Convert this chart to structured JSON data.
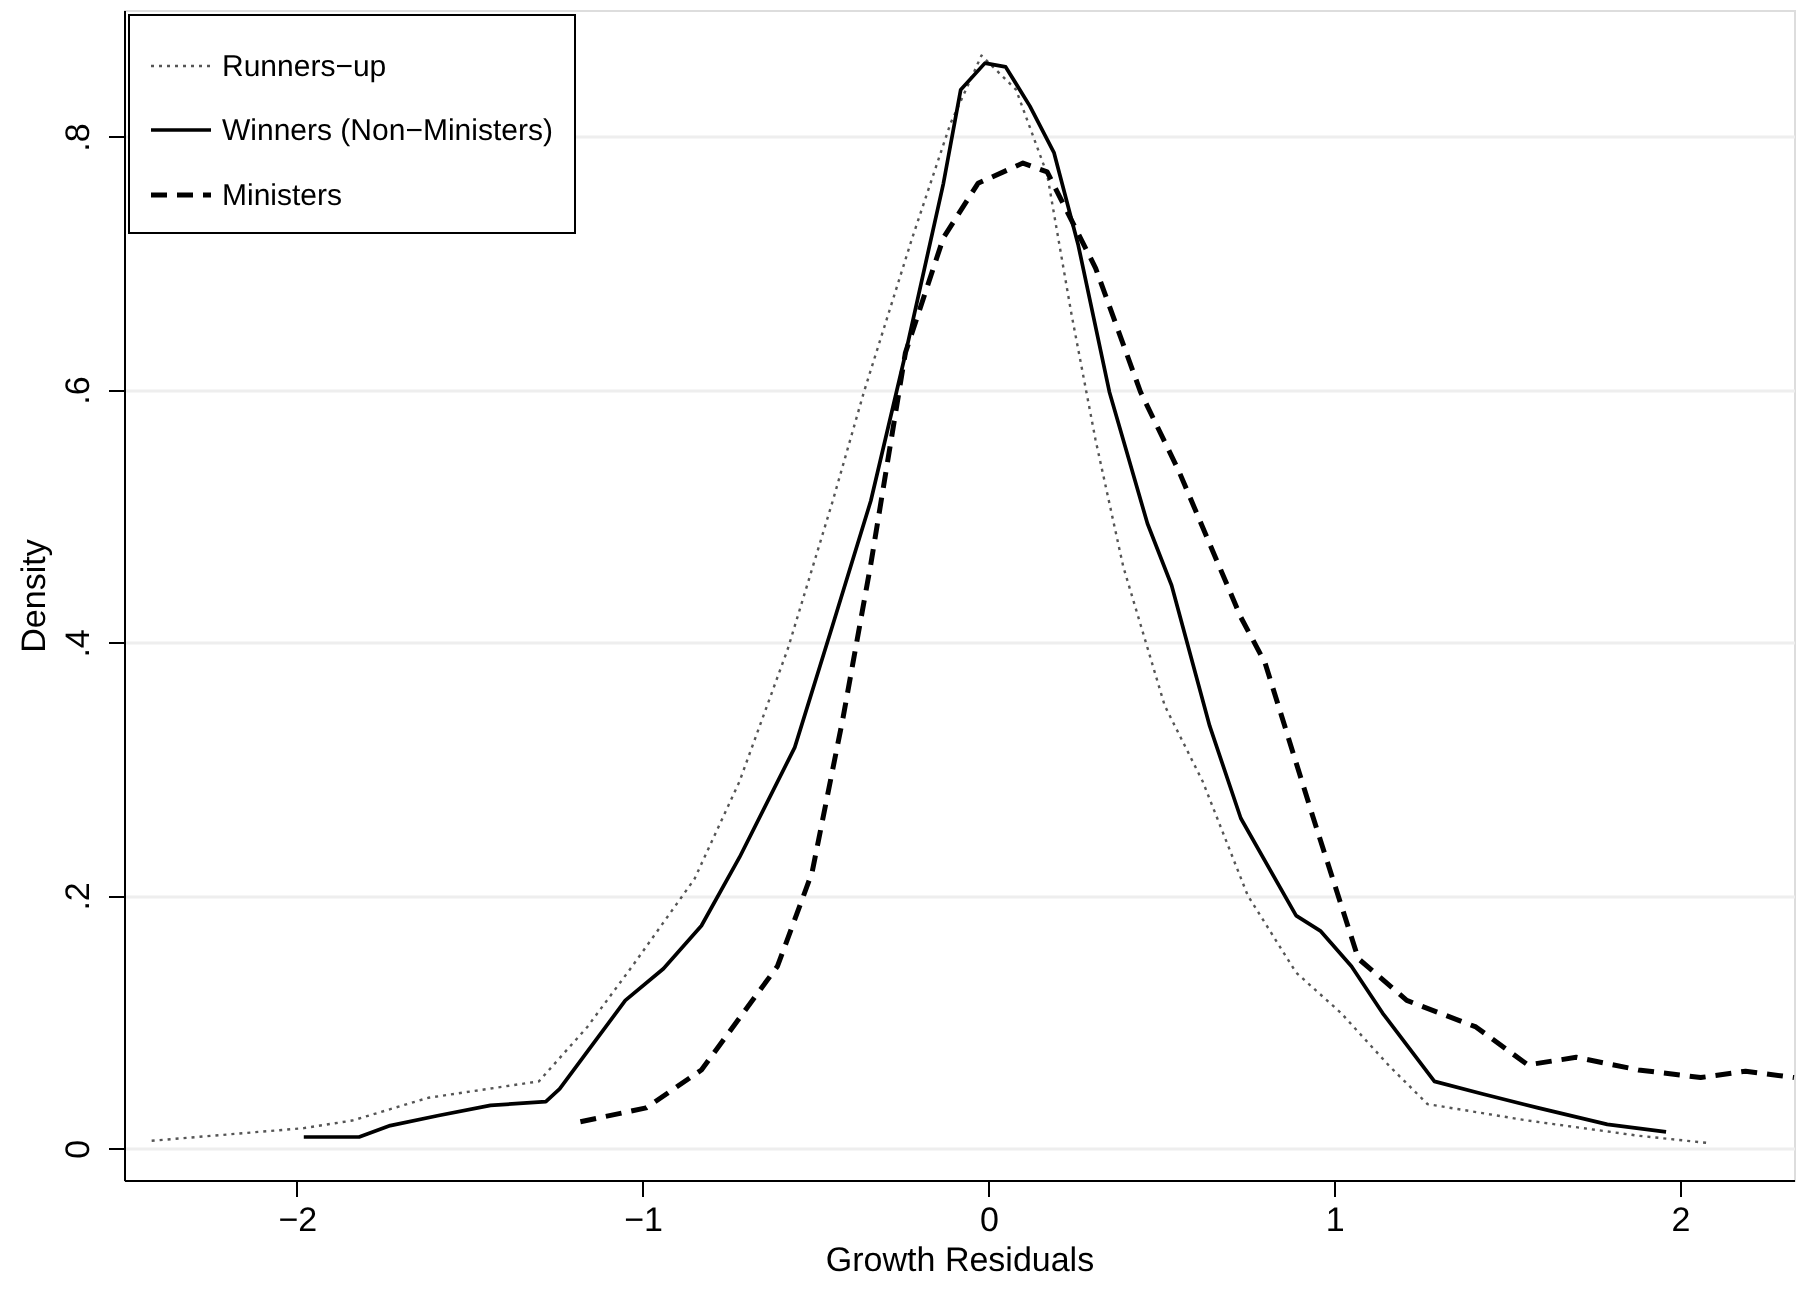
{
  "chart_data": {
    "type": "line",
    "xlabel": "Growth Residuals",
    "ylabel": "Density",
    "xlim": [
      -2.5,
      2.33
    ],
    "ylim": [
      -0.025,
      0.9
    ],
    "xticks": [
      {
        "value": -2,
        "label": "−2"
      },
      {
        "value": -1,
        "label": "−1"
      },
      0,
      1,
      2
    ],
    "yticks": [
      0,
      {
        "value": 0.2,
        "label": ".2"
      },
      {
        "value": 0.4,
        "label": ".4"
      },
      {
        "value": 0.6,
        "label": ".6"
      },
      {
        "value": 0.8,
        "label": ".8"
      }
    ],
    "grid": "y",
    "legend": "top left",
    "series": [
      {
        "name": "Runners−up",
        "color": "#555555",
        "line_style": "dotted",
        "x": [
          -2.42,
          -1.98,
          -1.84,
          -1.62,
          -1.3,
          -1.16,
          -1.03,
          -0.85,
          -0.72,
          -0.58,
          -0.45,
          -0.36,
          -0.22,
          -0.11,
          -0.02,
          0.08,
          0.17,
          0.24,
          0.31,
          0.39,
          0.51,
          0.62,
          0.75,
          0.89,
          1.02,
          1.16,
          1.27,
          1.56,
          1.88,
          2.09
        ],
        "values": [
          0.006,
          0.016,
          0.022,
          0.04,
          0.053,
          0.096,
          0.144,
          0.213,
          0.29,
          0.395,
          0.512,
          0.598,
          0.72,
          0.81,
          0.864,
          0.837,
          0.77,
          0.66,
          0.56,
          0.46,
          0.35,
          0.29,
          0.2,
          0.139,
          0.107,
          0.065,
          0.035,
          0.022,
          0.01,
          0.004
        ]
      },
      {
        "name": "Winners (Non−Ministers)",
        "color": "#000000",
        "line_style": "solid",
        "x": [
          -1.98,
          -1.82,
          -1.73,
          -1.59,
          -1.44,
          -1.28,
          -1.24,
          -1.05,
          -0.94,
          -0.83,
          -0.72,
          -0.56,
          -0.45,
          -0.34,
          -0.24,
          -0.13,
          -0.08,
          -0.01,
          0.05,
          0.12,
          0.19,
          0.26,
          0.35,
          0.46,
          0.53,
          0.64,
          0.73,
          0.89,
          0.96,
          1.05,
          1.14,
          1.29,
          1.43,
          1.59,
          1.79,
          1.96
        ],
        "values": [
          0.009,
          0.009,
          0.018,
          0.026,
          0.034,
          0.037,
          0.047,
          0.117,
          0.142,
          0.176,
          0.23,
          0.317,
          0.414,
          0.512,
          0.628,
          0.763,
          0.837,
          0.858,
          0.855,
          0.824,
          0.787,
          0.714,
          0.598,
          0.494,
          0.445,
          0.334,
          0.261,
          0.184,
          0.172,
          0.144,
          0.107,
          0.053,
          0.043,
          0.032,
          0.019,
          0.013
        ]
      },
      {
        "name": "Ministers",
        "color": "#000000",
        "line_style": "dashed",
        "x": [
          -1.18,
          -0.99,
          -0.83,
          -0.61,
          -0.51,
          -0.42,
          -0.34,
          -0.24,
          -0.13,
          -0.03,
          0.1,
          0.17,
          0.31,
          0.44,
          0.55,
          0.73,
          0.8,
          0.94,
          1.07,
          1.21,
          1.41,
          1.56,
          1.7,
          1.88,
          2.06,
          2.19,
          2.33
        ],
        "values": [
          0.021,
          0.032,
          0.062,
          0.144,
          0.218,
          0.341,
          0.462,
          0.629,
          0.72,
          0.763,
          0.779,
          0.772,
          0.696,
          0.598,
          0.536,
          0.42,
          0.384,
          0.261,
          0.15,
          0.117,
          0.096,
          0.066,
          0.072,
          0.062,
          0.056,
          0.061,
          0.056
        ]
      }
    ]
  }
}
